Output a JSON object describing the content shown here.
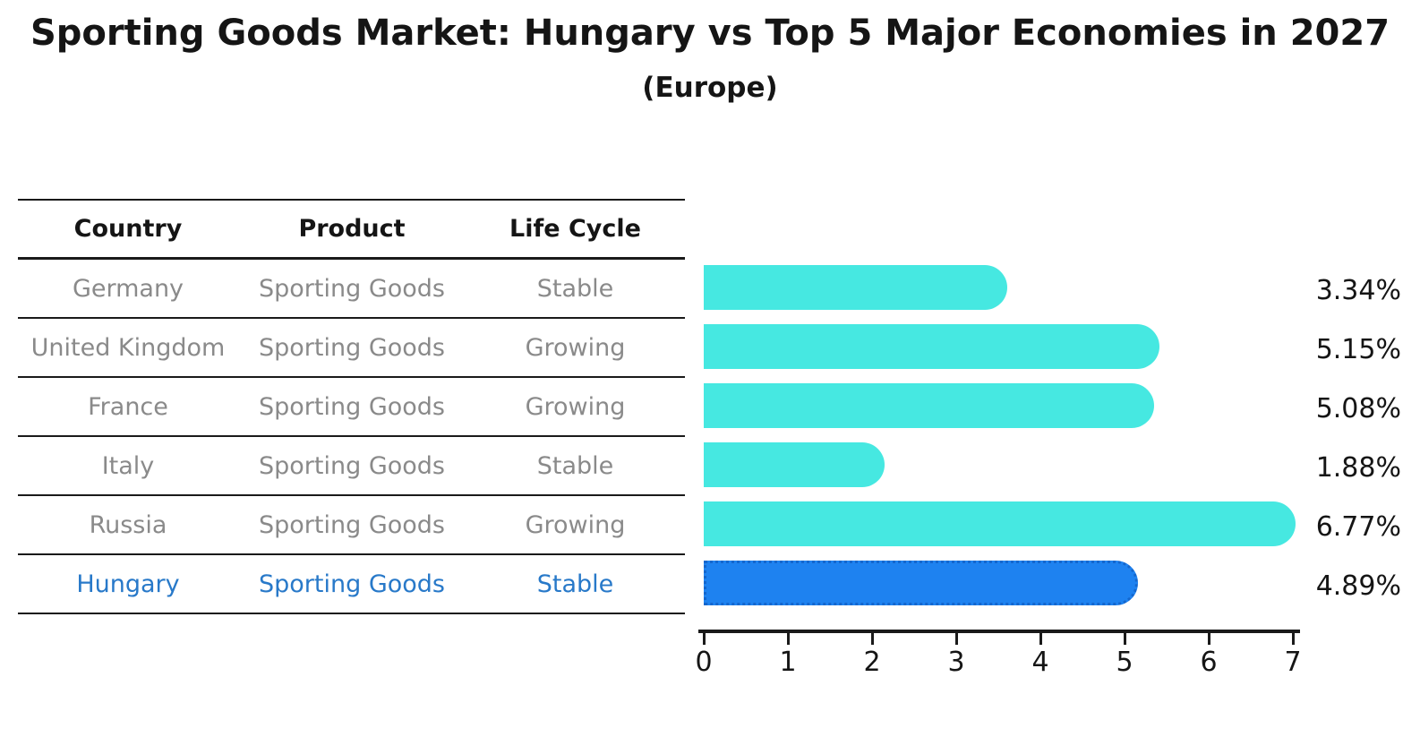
{
  "title": "Sporting Goods Market: Hungary vs Top 5 Major Economies in 2027",
  "subtitle": "(Europe)",
  "table": {
    "headers": [
      "Country",
      "Product",
      "Life Cycle"
    ],
    "rows": [
      {
        "country": "Germany",
        "product": "Sporting Goods",
        "life_cycle": "Stable",
        "highlight": false
      },
      {
        "country": "United Kingdom",
        "product": "Sporting Goods",
        "life_cycle": "Growing",
        "highlight": false
      },
      {
        "country": "France",
        "product": "Sporting Goods",
        "life_cycle": "Growing",
        "highlight": false
      },
      {
        "country": "Italy",
        "product": "Sporting Goods",
        "life_cycle": "Stable",
        "highlight": false
      },
      {
        "country": "Russia",
        "product": "Sporting Goods",
        "life_cycle": "Growing",
        "highlight": false
      },
      {
        "country": "Hungary",
        "product": "Sporting Goods",
        "life_cycle": "Stable",
        "highlight": true
      }
    ]
  },
  "chart_data": {
    "type": "bar",
    "orientation": "horizontal",
    "title": "Sporting Goods Market: Hungary vs Top 5 Major Economies in 2027",
    "subtitle": "(Europe)",
    "categories": [
      "Germany",
      "United Kingdom",
      "France",
      "Italy",
      "Russia",
      "Hungary"
    ],
    "values": [
      3.34,
      5.15,
      5.08,
      1.88,
      6.77,
      4.89
    ],
    "value_labels": [
      "3.34%",
      "5.15%",
      "5.08%",
      "1.88%",
      "6.77%",
      "4.89%"
    ],
    "unit": "%",
    "xlim": [
      0,
      7
    ],
    "x_tick_labels": [
      "0",
      "1",
      "2",
      "3",
      "4",
      "5",
      "6",
      "7"
    ],
    "grid": false,
    "legend": false,
    "highlight_category": "Hungary",
    "colors": {
      "bar": "#46e8e1",
      "highlight_bar": "#1e82f0",
      "highlight_bar_border": "#1467ce",
      "row_text": "#8a8a8a",
      "highlight_text": "#2879c9",
      "text": "#151515",
      "line": "#1a1a1a"
    }
  }
}
